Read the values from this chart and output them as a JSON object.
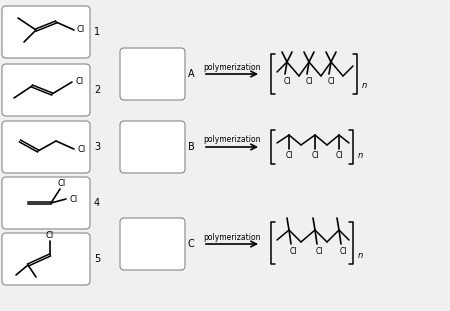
{
  "bg_color": "#f0f0f0",
  "box_bg": "#ffffff",
  "box_border_color": "#888888",
  "arrow_text": "polymerization",
  "monomer_labels": [
    "1",
    "2",
    "3",
    "4",
    "5"
  ],
  "answer_labels": [
    "A",
    "B",
    "C"
  ]
}
